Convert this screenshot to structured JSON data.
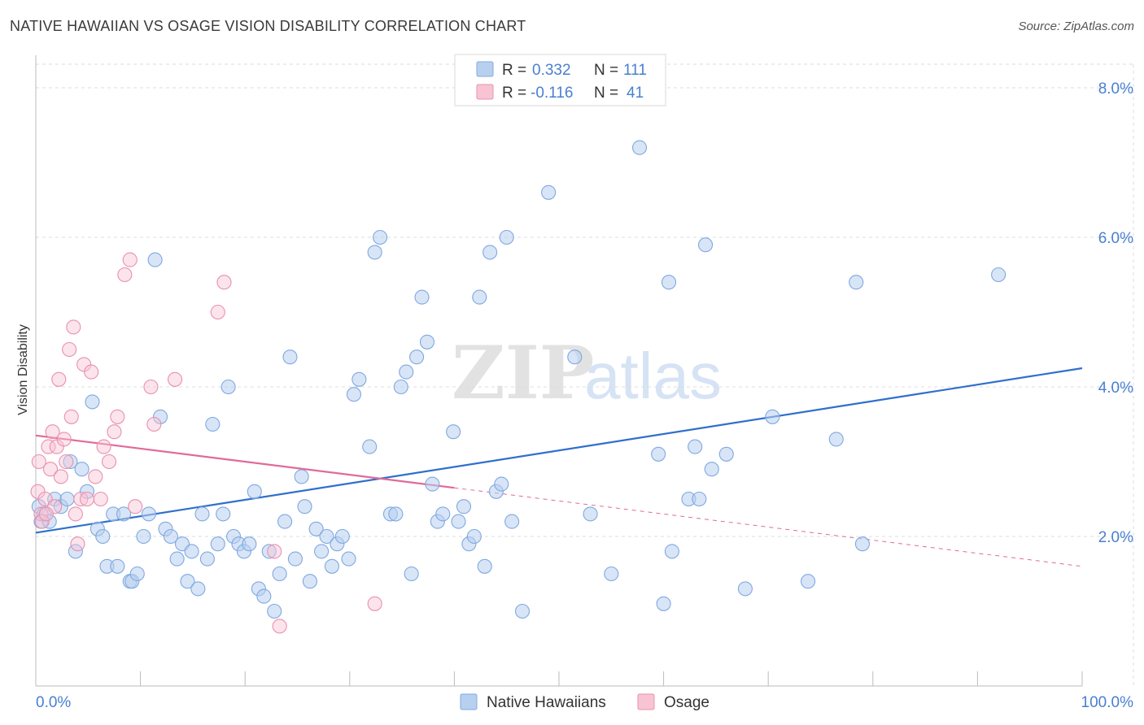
{
  "title": "NATIVE HAWAIIAN VS OSAGE VISION DISABILITY CORRELATION CHART",
  "source": "Source: ZipAtlas.com",
  "watermark": {
    "zip": "ZIP",
    "atlas": "atlas"
  },
  "legend_top": {
    "rows": [
      {
        "r_label": "R =",
        "r_value": "0.332",
        "n_label": "N =",
        "n_value": "111"
      },
      {
        "r_label": "R =",
        "r_value": "-0.116",
        "n_label": "N =",
        "n_value": "41"
      }
    ]
  },
  "colors": {
    "blue": "#4a7fd0",
    "blue_fill": "#b8d0f0",
    "blue_line": "#2f6fcc",
    "pink_fill": "#f8c4d4",
    "pink_stroke": "#e890ad",
    "pink_line": "#e06a98"
  },
  "chart_data": {
    "type": "scatter",
    "title": "NATIVE HAWAIIAN VS OSAGE VISION DISABILITY CORRELATION CHART",
    "xlabel": "",
    "ylabel": "Vision Disability",
    "xlim": [
      0,
      100
    ],
    "ylim": [
      0,
      8.5
    ],
    "x_tick_labels": [
      "0.0%",
      "100.0%"
    ],
    "y_ticks": [
      2,
      4,
      6,
      8
    ],
    "y_tick_labels": [
      "2.0%",
      "4.0%",
      "6.0%",
      "8.0%"
    ],
    "legend": [
      "Native Hawaiians",
      "Osage"
    ],
    "series": [
      {
        "name": "Native Hawaiians",
        "r": 0.332,
        "n": 111,
        "trend": {
          "x0": 0,
          "y0": 2.05,
          "x1": 100,
          "y1": 4.25
        },
        "points": [
          [
            0.3,
            2.4
          ],
          [
            0.5,
            2.2
          ],
          [
            0.8,
            2.3
          ],
          [
            1.3,
            2.2
          ],
          [
            1.8,
            2.5
          ],
          [
            2.4,
            2.4
          ],
          [
            3.0,
            2.5
          ],
          [
            3.3,
            3.0
          ],
          [
            3.8,
            1.8
          ],
          [
            4.4,
            2.9
          ],
          [
            4.9,
            2.6
          ],
          [
            5.4,
            3.8
          ],
          [
            5.9,
            2.1
          ],
          [
            6.4,
            2.0
          ],
          [
            6.8,
            1.6
          ],
          [
            7.4,
            2.3
          ],
          [
            7.8,
            1.6
          ],
          [
            8.4,
            2.3
          ],
          [
            9.0,
            1.4
          ],
          [
            9.2,
            1.4
          ],
          [
            9.7,
            1.5
          ],
          [
            10.3,
            2.0
          ],
          [
            10.8,
            2.3
          ],
          [
            11.4,
            5.7
          ],
          [
            11.9,
            3.6
          ],
          [
            12.4,
            2.1
          ],
          [
            12.9,
            2.0
          ],
          [
            13.5,
            1.7
          ],
          [
            14.0,
            1.9
          ],
          [
            14.5,
            1.4
          ],
          [
            14.9,
            1.8
          ],
          [
            15.5,
            1.3
          ],
          [
            15.9,
            2.3
          ],
          [
            16.4,
            1.7
          ],
          [
            16.9,
            3.5
          ],
          [
            17.4,
            1.9
          ],
          [
            17.9,
            2.3
          ],
          [
            18.4,
            4.0
          ],
          [
            18.9,
            2.0
          ],
          [
            19.4,
            1.9
          ],
          [
            19.9,
            1.8
          ],
          [
            20.4,
            1.9
          ],
          [
            20.9,
            2.6
          ],
          [
            21.3,
            1.3
          ],
          [
            21.8,
            1.2
          ],
          [
            22.3,
            1.8
          ],
          [
            22.8,
            1.0
          ],
          [
            23.3,
            1.5
          ],
          [
            23.8,
            2.2
          ],
          [
            24.3,
            4.4
          ],
          [
            24.8,
            1.7
          ],
          [
            25.4,
            2.8
          ],
          [
            25.7,
            2.4
          ],
          [
            26.2,
            1.4
          ],
          [
            26.8,
            2.1
          ],
          [
            27.3,
            1.8
          ],
          [
            27.8,
            2.0
          ],
          [
            28.3,
            1.6
          ],
          [
            28.8,
            1.9
          ],
          [
            29.3,
            2.0
          ],
          [
            29.9,
            1.7
          ],
          [
            30.4,
            3.9
          ],
          [
            30.9,
            4.1
          ],
          [
            31.9,
            3.2
          ],
          [
            32.4,
            5.8
          ],
          [
            32.9,
            6.0
          ],
          [
            33.9,
            2.3
          ],
          [
            34.4,
            2.3
          ],
          [
            34.9,
            4.0
          ],
          [
            35.4,
            4.2
          ],
          [
            35.9,
            1.5
          ],
          [
            36.4,
            4.4
          ],
          [
            36.9,
            5.2
          ],
          [
            37.4,
            4.6
          ],
          [
            37.9,
            2.7
          ],
          [
            38.4,
            2.2
          ],
          [
            38.9,
            2.3
          ],
          [
            39.9,
            3.4
          ],
          [
            40.4,
            2.2
          ],
          [
            40.9,
            2.4
          ],
          [
            41.4,
            1.9
          ],
          [
            41.9,
            2.0
          ],
          [
            42.4,
            5.2
          ],
          [
            42.9,
            1.6
          ],
          [
            43.4,
            5.8
          ],
          [
            44.0,
            2.6
          ],
          [
            44.5,
            2.7
          ],
          [
            45.0,
            6.0
          ],
          [
            45.5,
            2.2
          ],
          [
            46.5,
            1.0
          ],
          [
            49.0,
            6.6
          ],
          [
            51.5,
            4.4
          ],
          [
            53.0,
            2.3
          ],
          [
            55.0,
            1.5
          ],
          [
            57.7,
            7.2
          ],
          [
            59.5,
            3.1
          ],
          [
            60.0,
            1.1
          ],
          [
            60.5,
            5.4
          ],
          [
            60.8,
            1.8
          ],
          [
            62.4,
            2.5
          ],
          [
            63.0,
            3.2
          ],
          [
            63.4,
            2.5
          ],
          [
            64.0,
            5.9
          ],
          [
            64.6,
            2.9
          ],
          [
            66.0,
            3.1
          ],
          [
            67.8,
            1.3
          ],
          [
            70.4,
            3.6
          ],
          [
            73.8,
            1.4
          ],
          [
            76.5,
            3.3
          ],
          [
            78.4,
            5.4
          ],
          [
            79.0,
            1.9
          ],
          [
            92.0,
            5.5
          ]
        ]
      },
      {
        "name": "Osage",
        "r": -0.116,
        "n": 41,
        "trend": {
          "x0": 0,
          "y0": 3.35,
          "x1": 40,
          "y1": 2.65,
          "dash_x1": 100,
          "dash_y1": 1.6
        },
        "points": [
          [
            0.2,
            2.6
          ],
          [
            0.3,
            3.0
          ],
          [
            0.5,
            2.3
          ],
          [
            0.6,
            2.2
          ],
          [
            0.9,
            2.5
          ],
          [
            1.2,
            3.2
          ],
          [
            1.4,
            2.9
          ],
          [
            1.6,
            3.4
          ],
          [
            1.8,
            2.4
          ],
          [
            2.0,
            3.2
          ],
          [
            2.2,
            4.1
          ],
          [
            2.4,
            2.8
          ],
          [
            2.7,
            3.3
          ],
          [
            2.9,
            3.0
          ],
          [
            3.2,
            4.5
          ],
          [
            3.4,
            3.6
          ],
          [
            3.6,
            4.8
          ],
          [
            3.8,
            2.3
          ],
          [
            4.0,
            1.9
          ],
          [
            4.3,
            2.5
          ],
          [
            4.6,
            4.3
          ],
          [
            4.9,
            2.5
          ],
          [
            5.3,
            4.2
          ],
          [
            5.7,
            2.8
          ],
          [
            6.2,
            2.5
          ],
          [
            6.5,
            3.2
          ],
          [
            7.0,
            3.0
          ],
          [
            7.5,
            3.4
          ],
          [
            7.8,
            3.6
          ],
          [
            8.5,
            5.5
          ],
          [
            9.0,
            5.7
          ],
          [
            9.5,
            2.4
          ],
          [
            11.0,
            4.0
          ],
          [
            11.3,
            3.5
          ],
          [
            13.3,
            4.1
          ],
          [
            17.4,
            5.0
          ],
          [
            18.0,
            5.4
          ],
          [
            22.8,
            1.8
          ],
          [
            23.3,
            0.8
          ],
          [
            32.4,
            1.1
          ],
          [
            1.0,
            2.3
          ]
        ]
      }
    ]
  }
}
